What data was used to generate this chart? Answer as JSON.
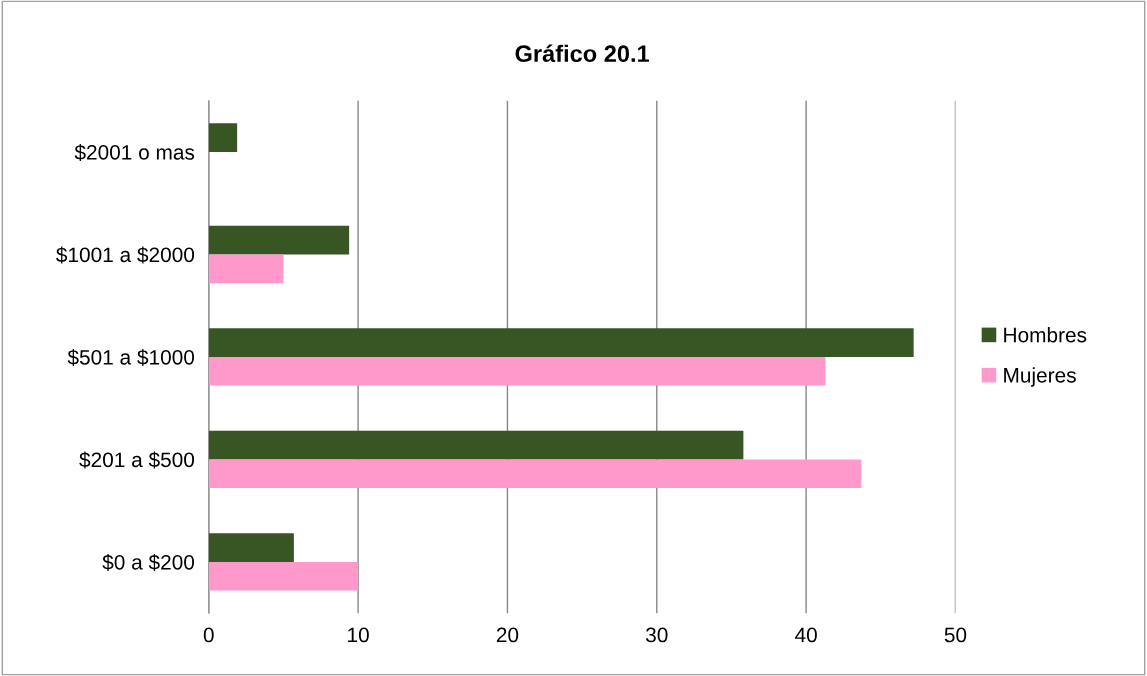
{
  "chart_data": {
    "type": "bar",
    "orientation": "horizontal",
    "title": "Gráfico 20.1",
    "categories": [
      "$2001 o mas",
      "$1001 a $2000",
      "$501 a $1000",
      "$201 a $500",
      "$0 a $200"
    ],
    "series": [
      {
        "name": "Hombres",
        "color": "#375623",
        "values": [
          1.9,
          9.4,
          47.2,
          35.8,
          5.7
        ]
      },
      {
        "name": "Mujeres",
        "color": "#ff99cc",
        "values": [
          0,
          5.0,
          41.3,
          43.7,
          10.0
        ]
      }
    ],
    "xlim": [
      0,
      50
    ],
    "xticks": [
      0,
      10,
      20,
      30,
      40,
      50
    ],
    "grid": "x",
    "legend": "right"
  }
}
